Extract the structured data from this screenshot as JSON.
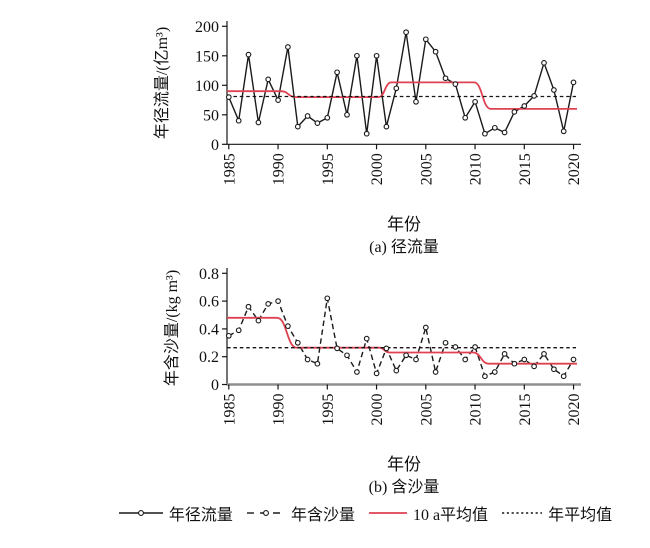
{
  "chart_data": [
    {
      "id": "runoff",
      "type": "line",
      "caption": "(a) 径流量",
      "xlabel": "年份",
      "ylabel": "年径流量/(亿m³)",
      "line_style": "solid",
      "marker": "open-circle",
      "xlim": [
        1984.6,
        2021
      ],
      "ylim": [
        0,
        200
      ],
      "x_ticks": [
        1985,
        1990,
        1995,
        2000,
        2005,
        2010,
        2015,
        2020
      ],
      "y_ticks": [
        0,
        50,
        100,
        150,
        200
      ],
      "years": [
        1985,
        1986,
        1987,
        1988,
        1989,
        1990,
        1991,
        1992,
        1993,
        1994,
        1995,
        1996,
        1997,
        1998,
        1999,
        2000,
        2001,
        2002,
        2003,
        2004,
        2005,
        2006,
        2007,
        2008,
        2009,
        2010,
        2011,
        2012,
        2013,
        2014,
        2015,
        2016,
        2017,
        2018,
        2019,
        2020
      ],
      "values": [
        80,
        40,
        152,
        37,
        110,
        75,
        165,
        30,
        48,
        36,
        45,
        122,
        50,
        150,
        18,
        150,
        30,
        95,
        190,
        72,
        178,
        157,
        112,
        102,
        45,
        72,
        18,
        28,
        20,
        55,
        65,
        82,
        138,
        92,
        22,
        105
      ],
      "decadal_avg": [
        [
          1984.6,
          1990.3,
          90
        ],
        [
          1991.8,
          2000.2,
          80
        ],
        [
          2001.5,
          2009.9,
          105
        ],
        [
          2011.6,
          2020.4,
          60
        ]
      ],
      "annual_mean": 81
    },
    {
      "id": "sediment",
      "type": "line",
      "caption": "(b) 含沙量",
      "xlabel": "年份",
      "ylabel": "年含沙量/(kg m³)",
      "line_style": "dashed",
      "marker": "open-circle",
      "xlim": [
        1984.6,
        2021
      ],
      "ylim": [
        0,
        0.8
      ],
      "x_ticks": [
        1985,
        1990,
        1995,
        2000,
        2005,
        2010,
        2015,
        2020
      ],
      "y_ticks": [
        0,
        0.2,
        0.4,
        0.6,
        0.8
      ],
      "years": [
        1985,
        1986,
        1987,
        1988,
        1989,
        1990,
        1991,
        1992,
        1993,
        1994,
        1995,
        1996,
        1997,
        1998,
        1999,
        2000,
        2001,
        2002,
        2003,
        2004,
        2005,
        2006,
        2007,
        2008,
        2009,
        2010,
        2011,
        2012,
        2013,
        2014,
        2015,
        2016,
        2017,
        2018,
        2019,
        2020
      ],
      "values": [
        0.35,
        0.39,
        0.56,
        0.46,
        0.58,
        0.6,
        0.42,
        0.3,
        0.18,
        0.15,
        0.62,
        0.26,
        0.21,
        0.09,
        0.33,
        0.08,
        0.26,
        0.1,
        0.21,
        0.18,
        0.41,
        0.09,
        0.3,
        0.27,
        0.18,
        0.27,
        0.06,
        0.09,
        0.22,
        0.15,
        0.18,
        0.13,
        0.22,
        0.11,
        0.06,
        0.18
      ],
      "decadal_avg": [
        [
          1984.6,
          1989.9,
          0.48
        ],
        [
          1991.9,
          2000.3,
          0.265
        ],
        [
          2001.3,
          2009.8,
          0.23
        ],
        [
          2011.4,
          2020.4,
          0.15
        ]
      ],
      "annual_mean": 0.265
    }
  ],
  "legend": [
    {
      "label": "年径流量",
      "sample": "solid-line-circle-marker"
    },
    {
      "label": "年含沙量",
      "sample": "dashed-line-circle-marker"
    },
    {
      "label": "10 a平均值",
      "sample": "red-solid-line"
    },
    {
      "label": "年平均值",
      "sample": "black-dotted-line"
    }
  ],
  "colors": {
    "series_line": "#1a1a1a",
    "marker_fill": "#ffffff",
    "decadal_avg_line": "#de4150",
    "annual_mean_line": "#161616",
    "axis": "#161616",
    "axis_x_bottom": "#8f8f8f"
  }
}
